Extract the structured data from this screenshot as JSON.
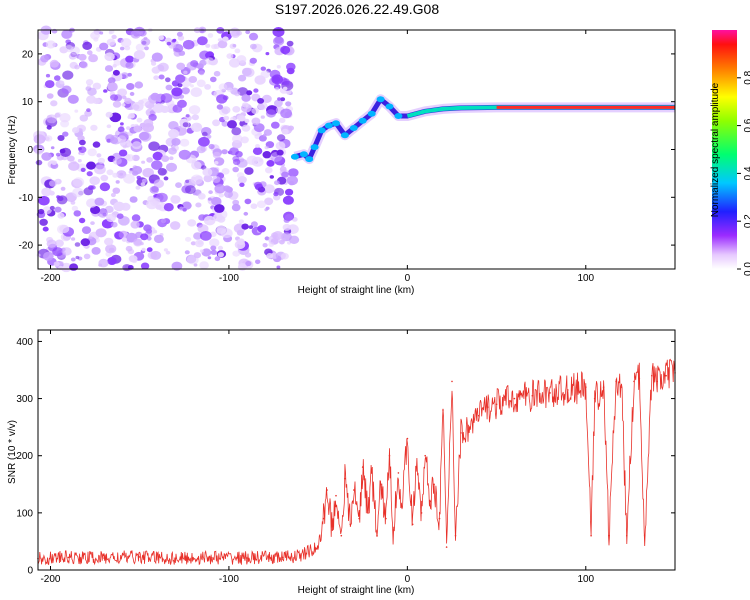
{
  "title": "S197.2026.026.22.49.G08",
  "chart_data": [
    {
      "type": "heatmap",
      "name": "spectrogram",
      "xlabel": "Height of straight line (km)",
      "ylabel": "Frequency (Hz)",
      "xlim": [
        -207,
        150
      ],
      "ylim": [
        -25,
        25
      ],
      "xticks": [
        -200,
        -100,
        0,
        100
      ],
      "yticks": [
        -20,
        -10,
        0,
        10,
        20
      ],
      "colorbar": {
        "label": "Normalized spectral amplitude",
        "range": [
          0,
          1
        ],
        "ticks": [
          0.0,
          0.2,
          0.4,
          0.6,
          0.8
        ]
      },
      "noise_region_end_km": -63,
      "ridge": [
        {
          "x": -63,
          "y": -1.5
        },
        {
          "x": -58,
          "y": -1.0
        },
        {
          "x": -55,
          "y": -2.0
        },
        {
          "x": -52,
          "y": 0.5
        },
        {
          "x": -48,
          "y": 4.0
        },
        {
          "x": -44,
          "y": 5.0
        },
        {
          "x": -40,
          "y": 5.5
        },
        {
          "x": -35,
          "y": 3.0
        },
        {
          "x": -30,
          "y": 4.5
        },
        {
          "x": -25,
          "y": 6.0
        },
        {
          "x": -20,
          "y": 7.5
        },
        {
          "x": -15,
          "y": 10.5
        },
        {
          "x": -10,
          "y": 9.0
        },
        {
          "x": -5,
          "y": 7.0
        },
        {
          "x": 0,
          "y": 7.0
        },
        {
          "x": 10,
          "y": 8.0
        },
        {
          "x": 20,
          "y": 8.5
        },
        {
          "x": 30,
          "y": 8.7
        },
        {
          "x": 50,
          "y": 8.8
        },
        {
          "x": 100,
          "y": 8.8
        },
        {
          "x": 150,
          "y": 8.8
        }
      ]
    },
    {
      "type": "line",
      "name": "snr",
      "xlabel": "Height of straight line (km)",
      "ylabel": "SNR (10 * v/v)",
      "xlim": [
        -207,
        150
      ],
      "ylim": [
        0,
        420
      ],
      "xticks": [
        -200,
        -100,
        0,
        100
      ],
      "yticks": [
        0,
        100,
        200,
        300,
        400
      ],
      "color": "#e8312a",
      "series": [
        {
          "name": "SNR",
          "x": [
            -207,
            -190,
            -170,
            -150,
            -130,
            -110,
            -90,
            -70,
            -60,
            -50,
            -47,
            -45,
            -42,
            -40,
            -37,
            -35,
            -32,
            -30,
            -27,
            -25,
            -22,
            -20,
            -17,
            -15,
            -12,
            -10,
            -8,
            -5,
            -3,
            0,
            3,
            5,
            8,
            10,
            13,
            15,
            18,
            20,
            22,
            25,
            27,
            30,
            35,
            40,
            45,
            50,
            60,
            70,
            80,
            90,
            100,
            103,
            105,
            110,
            113,
            117,
            120,
            123,
            127,
            130,
            133,
            137,
            140,
            145,
            150
          ],
          "y": [
            20,
            22,
            21,
            23,
            20,
            22,
            21,
            22,
            25,
            40,
            90,
            140,
            70,
            130,
            60,
            160,
            80,
            140,
            90,
            180,
            100,
            170,
            60,
            150,
            90,
            200,
            70,
            170,
            110,
            230,
            80,
            180,
            100,
            200,
            120,
            150,
            90,
            280,
            40,
            330,
            60,
            240,
            250,
            270,
            285,
            290,
            300,
            305,
            310,
            315,
            320,
            60,
            300,
            320,
            60,
            330,
            320,
            60,
            330,
            335,
            60,
            340,
            330,
            340,
            345
          ]
        }
      ]
    }
  ]
}
